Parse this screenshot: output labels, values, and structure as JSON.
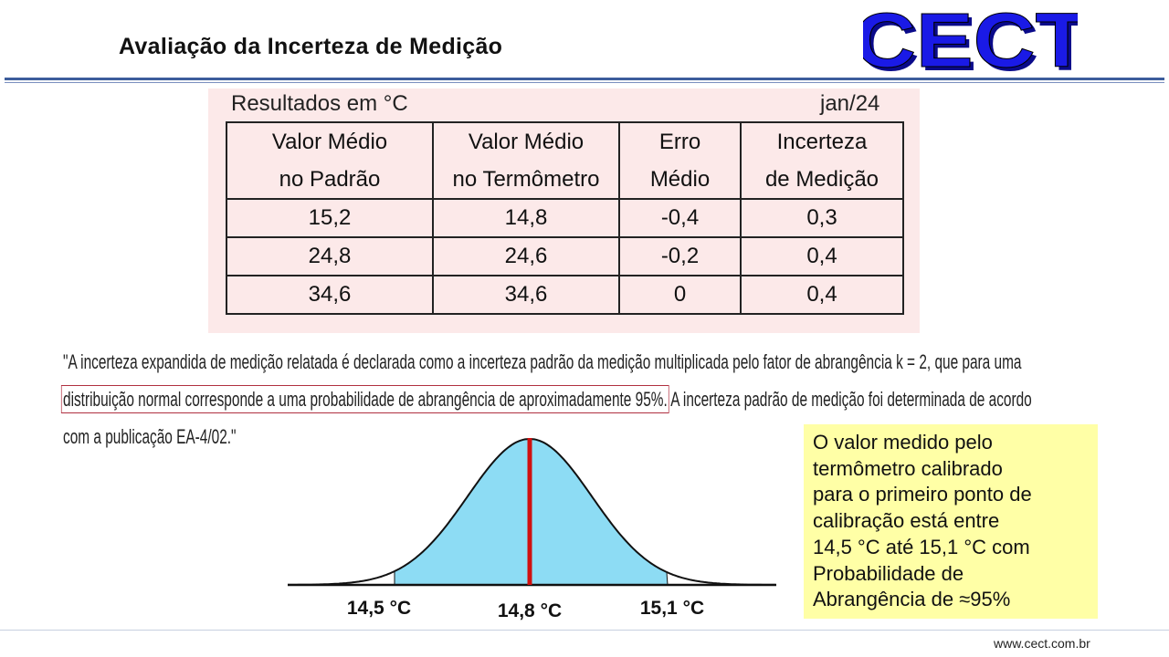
{
  "header": {
    "title": "Avaliação da Incerteza de Medição",
    "logo": "CECT"
  },
  "table": {
    "caption": "Resultados em °C",
    "date": "jan/24",
    "columns": [
      [
        "Valor Médio",
        "no Padrão"
      ],
      [
        "Valor Médio",
        "no Termômetro"
      ],
      [
        "Erro",
        "Médio"
      ],
      [
        "Incerteza",
        "de Medição"
      ]
    ],
    "rows": [
      [
        "15,2",
        "14,8",
        "-0,4",
        "0,3"
      ],
      [
        "24,8",
        "24,6",
        "-0,2",
        "0,4"
      ],
      [
        "34,6",
        "34,6",
        "0",
        "0,4"
      ]
    ]
  },
  "note": {
    "line1": "\"A incerteza expandida de medição relatada é declarada como a incerteza padrão da medição multiplicada pelo fator de abrangência k = 2, que para uma",
    "highlight": "distribuição normal corresponde a uma probabilidade de abrangência de aproximadamente 95%.",
    "line2_rest": " A incerteza padrão de medição foi determinada de acordo",
    "line3": "com a publicação EA-4/02.\""
  },
  "curve": {
    "labels": [
      "14,5 °C",
      "14,8 °C",
      "15,1 °C"
    ]
  },
  "callout": {
    "lines": [
      "O valor medido pelo",
      "termômetro calibrado",
      "para o primeiro ponto de",
      "calibração está entre",
      "14,5 °C até 15,1 °C com",
      "Probabilidade de",
      "Abrangência de  ≈95%"
    ]
  },
  "footer": {
    "url": "www.cect.com.br"
  }
}
